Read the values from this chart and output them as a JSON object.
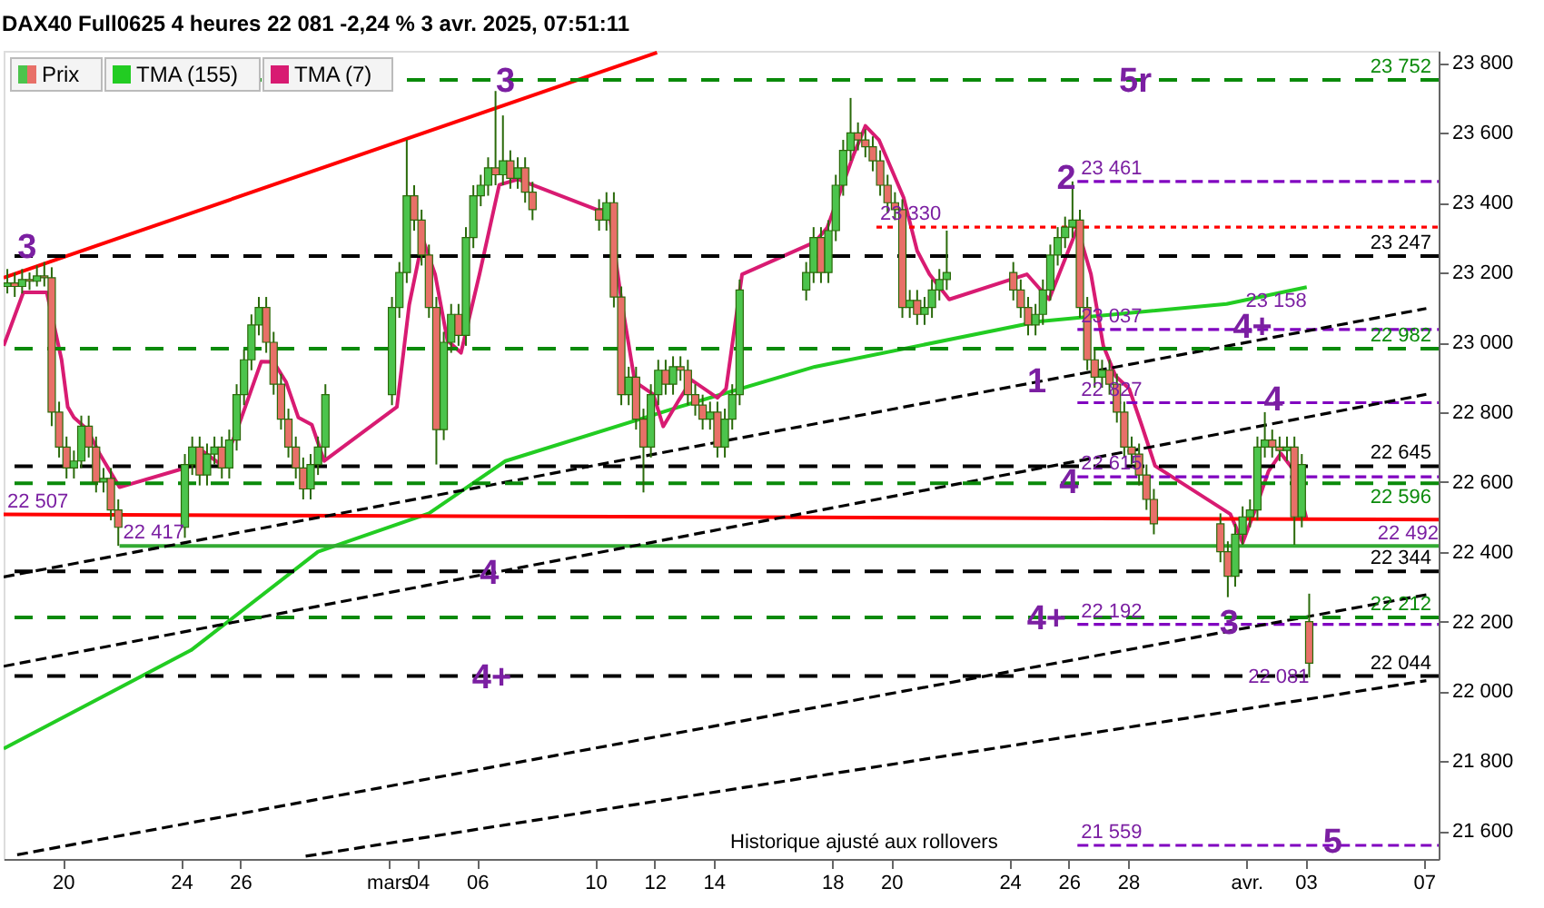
{
  "chart_data": {
    "type": "candlestick",
    "title": "DAX40 Full0625 4 heures 22 081 -2,24 % 3 avr. 2025, 07:51:11",
    "xlim": [
      "2025-02-18T00:00",
      "2025-04-07T12:00"
    ],
    "ylim": [
      21520,
      23835
    ],
    "xticks": [
      {
        "value": "2025-02-20",
        "label": "20"
      },
      {
        "value": "2025-02-24",
        "label": "24"
      },
      {
        "value": "2025-02-26",
        "label": "26"
      },
      {
        "value": "2025-03-03",
        "label": "mars"
      },
      {
        "value": "2025-03-04",
        "label": "04"
      },
      {
        "value": "2025-03-06",
        "label": "06"
      },
      {
        "value": "2025-03-10",
        "label": "10"
      },
      {
        "value": "2025-03-12",
        "label": "12"
      },
      {
        "value": "2025-03-14",
        "label": "14"
      },
      {
        "value": "2025-03-18",
        "label": "18"
      },
      {
        "value": "2025-03-20",
        "label": "20"
      },
      {
        "value": "2025-03-24",
        "label": "24"
      },
      {
        "value": "2025-03-26",
        "label": "26"
      },
      {
        "value": "2025-03-28",
        "label": "28"
      },
      {
        "value": "2025-04-01",
        "label": "avr."
      },
      {
        "value": "2025-04-03",
        "label": "03"
      },
      {
        "value": "2025-04-07",
        "label": "07"
      }
    ],
    "yticks": [
      {
        "value": 21600,
        "label": "21 600"
      },
      {
        "value": 21800,
        "label": "21 800"
      },
      {
        "value": 22000,
        "label": "22 000"
      },
      {
        "value": 22200,
        "label": "22 200"
      },
      {
        "value": 22400,
        "label": "22 400"
      },
      {
        "value": 22600,
        "label": "22 600"
      },
      {
        "value": 22800,
        "label": "22 800"
      },
      {
        "value": 23000,
        "label": "23 000"
      },
      {
        "value": 23200,
        "label": "23 200"
      },
      {
        "value": 23400,
        "label": "23 400"
      },
      {
        "value": 23600,
        "label": "23 600"
      },
      {
        "value": 23800,
        "label": "23 800"
      }
    ],
    "grid": false,
    "legend": "top left",
    "series": [
      {
        "name": "Prix",
        "color": "#2a6a0a",
        "x": [
          "2025-02-18T03:00",
          "2025-02-18T09:00",
          "2025-02-18T15:00",
          "2025-02-18T21:00",
          "2025-02-19T03:00",
          "2025-02-19T09:00",
          "2025-02-19T15:00",
          "2025-02-19T21:00",
          "2025-02-20T03:00",
          "2025-02-20T09:00",
          "2025-02-20T15:00",
          "2025-02-20T21:00",
          "2025-02-21T03:00",
          "2025-02-21T09:00",
          "2025-02-21T15:00",
          "2025-02-21T21:00",
          "2025-02-24T03:00",
          "2025-02-24T09:00",
          "2025-02-24T15:00",
          "2025-02-24T21:00",
          "2025-02-25T03:00",
          "2025-02-25T09:00",
          "2025-02-25T15:00",
          "2025-02-25T21:00",
          "2025-02-26T03:00",
          "2025-02-26T09:00",
          "2025-02-26T15:00",
          "2025-02-26T21:00",
          "2025-02-27T03:00",
          "2025-02-27T09:00",
          "2025-02-27T15:00",
          "2025-02-27T21:00",
          "2025-02-28T03:00",
          "2025-02-28T09:00",
          "2025-02-28T15:00",
          "2025-02-28T21:00",
          "2025-03-03T03:00",
          "2025-03-03T09:00",
          "2025-03-03T15:00",
          "2025-03-03T21:00",
          "2025-03-04T03:00",
          "2025-03-04T09:00",
          "2025-03-04T15:00",
          "2025-03-04T21:00",
          "2025-03-05T03:00",
          "2025-03-05T09:00",
          "2025-03-05T15:00",
          "2025-03-05T21:00",
          "2025-03-06T03:00",
          "2025-03-06T09:00",
          "2025-03-06T15:00",
          "2025-03-06T21:00",
          "2025-03-07T03:00",
          "2025-03-07T09:00",
          "2025-03-07T15:00",
          "2025-03-07T21:00",
          "2025-03-10T03:00",
          "2025-03-10T09:00",
          "2025-03-10T15:00",
          "2025-03-10T21:00",
          "2025-03-11T03:00",
          "2025-03-11T09:00",
          "2025-03-11T15:00",
          "2025-03-11T21:00",
          "2025-03-12T03:00",
          "2025-03-12T09:00",
          "2025-03-12T15:00",
          "2025-03-12T21:00",
          "2025-03-13T03:00",
          "2025-03-13T09:00",
          "2025-03-13T15:00",
          "2025-03-13T21:00",
          "2025-03-14T03:00",
          "2025-03-14T09:00",
          "2025-03-14T15:00",
          "2025-03-14T21:00",
          "2025-03-17T03:00",
          "2025-03-17T09:00",
          "2025-03-17T15:00",
          "2025-03-17T21:00",
          "2025-03-18T03:00",
          "2025-03-18T09:00",
          "2025-03-18T15:00",
          "2025-03-18T21:00",
          "2025-03-19T03:00",
          "2025-03-19T09:00",
          "2025-03-19T15:00",
          "2025-03-19T21:00",
          "2025-03-20T03:00",
          "2025-03-20T09:00",
          "2025-03-20T15:00",
          "2025-03-20T21:00",
          "2025-03-21T03:00",
          "2025-03-21T09:00",
          "2025-03-21T15:00",
          "2025-03-21T21:00",
          "2025-03-24T03:00",
          "2025-03-24T09:00",
          "2025-03-24T15:00",
          "2025-03-24T21:00",
          "2025-03-25T03:00",
          "2025-03-25T09:00",
          "2025-03-25T15:00",
          "2025-03-25T21:00",
          "2025-03-26T03:00",
          "2025-03-26T09:00",
          "2025-03-26T15:00",
          "2025-03-26T21:00",
          "2025-03-27T03:00",
          "2025-03-27T09:00",
          "2025-03-27T15:00",
          "2025-03-27T21:00",
          "2025-03-28T03:00",
          "2025-03-28T09:00",
          "2025-03-28T15:00",
          "2025-03-28T21:00",
          "2025-03-31T03:00",
          "2025-03-31T09:00",
          "2025-03-31T15:00",
          "2025-03-31T21:00",
          "2025-04-01T03:00",
          "2025-04-01T09:00",
          "2025-04-01T15:00",
          "2025-04-01T21:00",
          "2025-04-02T03:00",
          "2025-04-02T09:00",
          "2025-04-02T15:00",
          "2025-04-02T21:00",
          "2025-04-03T03:00"
        ],
        "ohlc": [
          [
            23160,
            23210,
            23140,
            23170
          ],
          [
            23170,
            23200,
            23130,
            23160
          ],
          [
            23160,
            23210,
            23140,
            23180
          ],
          [
            23180,
            23200,
            23150,
            23175
          ],
          [
            23175,
            23220,
            23160,
            23190
          ],
          [
            23190,
            23230,
            23160,
            23185
          ],
          [
            23185,
            23215,
            22760,
            22800
          ],
          [
            22800,
            22830,
            22670,
            22700
          ],
          [
            22700,
            22730,
            22610,
            22640
          ],
          [
            22640,
            22690,
            22610,
            22660
          ],
          [
            22660,
            22790,
            22640,
            22760
          ],
          [
            22760,
            22790,
            22670,
            22700
          ],
          [
            22700,
            22730,
            22570,
            22600
          ],
          [
            22600,
            22640,
            22570,
            22610
          ],
          [
            22610,
            22640,
            22490,
            22520
          ],
          [
            22520,
            22550,
            22417,
            22470
          ],
          [
            22470,
            22680,
            22440,
            22650
          ],
          [
            22650,
            22730,
            22620,
            22700
          ],
          [
            22700,
            22730,
            22590,
            22620
          ],
          [
            22620,
            22710,
            22590,
            22680
          ],
          [
            22680,
            22730,
            22650,
            22700
          ],
          [
            22700,
            22730,
            22610,
            22640
          ],
          [
            22640,
            22750,
            22610,
            22720
          ],
          [
            22720,
            22880,
            22690,
            22850
          ],
          [
            22850,
            22980,
            22820,
            22950
          ],
          [
            22950,
            23080,
            22920,
            23050
          ],
          [
            23050,
            23130,
            23020,
            23100
          ],
          [
            23100,
            23130,
            22970,
            23000
          ],
          [
            23000,
            23030,
            22850,
            22880
          ],
          [
            22880,
            22910,
            22750,
            22780
          ],
          [
            22780,
            22810,
            22670,
            22700
          ],
          [
            22700,
            22730,
            22610,
            22640
          ],
          [
            22640,
            22670,
            22550,
            22580
          ],
          [
            22580,
            22680,
            22550,
            22650
          ],
          [
            22650,
            22730,
            22620,
            22700
          ],
          [
            22700,
            22880,
            22670,
            22850
          ],
          [
            22850,
            23130,
            22820,
            23100
          ],
          [
            23100,
            23230,
            23070,
            23200
          ],
          [
            23200,
            23580,
            23170,
            23420
          ],
          [
            23420,
            23450,
            23320,
            23350
          ],
          [
            23350,
            23380,
            23220,
            23250
          ],
          [
            23250,
            23280,
            23070,
            23100
          ],
          [
            23100,
            23130,
            22650,
            22750
          ],
          [
            22750,
            23030,
            22720,
            23000
          ],
          [
            23000,
            23110,
            22970,
            23080
          ],
          [
            23080,
            23110,
            22990,
            23020
          ],
          [
            23020,
            23330,
            22990,
            23300
          ],
          [
            23300,
            23450,
            23270,
            23420
          ],
          [
            23420,
            23480,
            23390,
            23450
          ],
          [
            23450,
            23530,
            23420,
            23500
          ],
          [
            23500,
            23720,
            23450,
            23480
          ],
          [
            23480,
            23650,
            23450,
            23520
          ],
          [
            23520,
            23550,
            23440,
            23470
          ],
          [
            23470,
            23530,
            23440,
            23500
          ],
          [
            23500,
            23530,
            23400,
            23430
          ],
          [
            23430,
            23460,
            23350,
            23380
          ],
          [
            23380,
            23410,
            23320,
            23350
          ],
          [
            23350,
            23430,
            23320,
            23400
          ],
          [
            23400,
            23430,
            23100,
            23130
          ],
          [
            23130,
            23160,
            22820,
            22850
          ],
          [
            22850,
            22930,
            22820,
            22900
          ],
          [
            22900,
            22930,
            22750,
            22780
          ],
          [
            22780,
            22810,
            22570,
            22700
          ],
          [
            22700,
            22880,
            22670,
            22850
          ],
          [
            22850,
            22950,
            22820,
            22920
          ],
          [
            22920,
            22950,
            22850,
            22880
          ],
          [
            22880,
            22960,
            22850,
            22930
          ],
          [
            22930,
            22960,
            22890,
            22920
          ],
          [
            22920,
            22950,
            22820,
            22850
          ],
          [
            22850,
            22880,
            22790,
            22820
          ],
          [
            22820,
            22850,
            22750,
            22780
          ],
          [
            22780,
            22830,
            22750,
            22800
          ],
          [
            22800,
            22830,
            22670,
            22700
          ],
          [
            22700,
            22810,
            22670,
            22780
          ],
          [
            22780,
            22880,
            22750,
            22850
          ],
          [
            22850,
            23180,
            22820,
            23150
          ],
          [
            23150,
            23230,
            23120,
            23200
          ],
          [
            23200,
            23330,
            23170,
            23300
          ],
          [
            23300,
            23330,
            23170,
            23200
          ],
          [
            23200,
            23350,
            23170,
            23320
          ],
          [
            23320,
            23480,
            23290,
            23450
          ],
          [
            23450,
            23580,
            23420,
            23550
          ],
          [
            23550,
            23700,
            23520,
            23600
          ],
          [
            23600,
            23630,
            23550,
            23580
          ],
          [
            23580,
            23610,
            23530,
            23560
          ],
          [
            23560,
            23590,
            23490,
            23520
          ],
          [
            23520,
            23550,
            23420,
            23450
          ],
          [
            23450,
            23480,
            23370,
            23400
          ],
          [
            23400,
            23430,
            23350,
            23380
          ],
          [
            23380,
            23410,
            23070,
            23100
          ],
          [
            23100,
            23150,
            23070,
            23120
          ],
          [
            23120,
            23150,
            23050,
            23080
          ],
          [
            23080,
            23130,
            23050,
            23100
          ],
          [
            23100,
            23180,
            23070,
            23150
          ],
          [
            23150,
            23210,
            23120,
            23180
          ],
          [
            23180,
            23320,
            23150,
            23200
          ],
          [
            23200,
            23230,
            23120,
            23150
          ],
          [
            23150,
            23180,
            23070,
            23100
          ],
          [
            23100,
            23130,
            23020,
            23050
          ],
          [
            23050,
            23110,
            23020,
            23080
          ],
          [
            23080,
            23180,
            23050,
            23150
          ],
          [
            23150,
            23280,
            23120,
            23250
          ],
          [
            23250,
            23330,
            23220,
            23300
          ],
          [
            23300,
            23360,
            23270,
            23330
          ],
          [
            23330,
            23461,
            23300,
            23350
          ],
          [
            23350,
            23380,
            23070,
            23100
          ],
          [
            23100,
            23130,
            22920,
            22950
          ],
          [
            22950,
            22980,
            22870,
            22900
          ],
          [
            22900,
            22950,
            22870,
            22920
          ],
          [
            22920,
            22950,
            22850,
            22880
          ],
          [
            22880,
            22910,
            22770,
            22800
          ],
          [
            22800,
            22830,
            22670,
            22700
          ],
          [
            22700,
            22730,
            22650,
            22680
          ],
          [
            22680,
            22710,
            22590,
            22620
          ],
          [
            22620,
            22650,
            22520,
            22550
          ],
          [
            22550,
            22580,
            22450,
            22480
          ],
          [
            22480,
            22510,
            22370,
            22400
          ],
          [
            22400,
            22430,
            22270,
            22330
          ],
          [
            22330,
            22480,
            22300,
            22450
          ],
          [
            22450,
            22530,
            22420,
            22500
          ],
          [
            22500,
            22550,
            22470,
            22520
          ],
          [
            22520,
            22730,
            22490,
            22700
          ],
          [
            22700,
            22800,
            22670,
            22720
          ],
          [
            22720,
            22750,
            22670,
            22700
          ],
          [
            22700,
            22730,
            22660,
            22690
          ],
          [
            22690,
            22730,
            22660,
            22700
          ],
          [
            22700,
            22730,
            22420,
            22500
          ],
          [
            22500,
            22680,
            22470,
            22650
          ],
          [
            22200,
            22280,
            22040,
            22081
          ]
        ],
        "colors": [
          "#4cc44c",
          "#e87068",
          "#4cc44c",
          "#e87068",
          "#4cc44c",
          "#e87068",
          "#e87068",
          "#e87068",
          "#e87068",
          "#4cc44c",
          "#4cc44c",
          "#e87068",
          "#e87068",
          "#4cc44c",
          "#e87068",
          "#e87068",
          "#4cc44c",
          "#4cc44c",
          "#e87068",
          "#4cc44c",
          "#4cc44c",
          "#e87068",
          "#4cc44c",
          "#4cc44c",
          "#4cc44c",
          "#4cc44c",
          "#4cc44c",
          "#e87068",
          "#e87068",
          "#e87068",
          "#e87068",
          "#e87068",
          "#e87068",
          "#4cc44c",
          "#4cc44c",
          "#4cc44c",
          "#4cc44c",
          "#4cc44c",
          "#4cc44c",
          "#e87068",
          "#e87068",
          "#e87068",
          "#e87068",
          "#4cc44c",
          "#4cc44c",
          "#e87068",
          "#4cc44c",
          "#4cc44c",
          "#4cc44c",
          "#4cc44c",
          "#e87068",
          "#4cc44c",
          "#e87068",
          "#4cc44c",
          "#e87068",
          "#e87068",
          "#e87068",
          "#4cc44c",
          "#e87068",
          "#e87068",
          "#4cc44c",
          "#e87068",
          "#e87068",
          "#4cc44c",
          "#4cc44c",
          "#e87068",
          "#4cc44c",
          "#e87068",
          "#e87068",
          "#e87068",
          "#e87068",
          "#4cc44c",
          "#e87068",
          "#4cc44c",
          "#4cc44c",
          "#4cc44c",
          "#4cc44c",
          "#4cc44c",
          "#e87068",
          "#4cc44c",
          "#4cc44c",
          "#4cc44c",
          "#4cc44c",
          "#e87068",
          "#e87068",
          "#e87068",
          "#e87068",
          "#e87068",
          "#e87068",
          "#e87068",
          "#4cc44c",
          "#e87068",
          "#4cc44c",
          "#4cc44c",
          "#4cc44c",
          "#4cc44c",
          "#e87068",
          "#e87068",
          "#e87068",
          "#4cc44c",
          "#4cc44c",
          "#4cc44c",
          "#4cc44c",
          "#4cc44c",
          "#4cc44c",
          "#e87068",
          "#e87068",
          "#e87068",
          "#4cc44c",
          "#e87068",
          "#e87068",
          "#e87068",
          "#e87068",
          "#e87068",
          "#e87068",
          "#e87068",
          "#e87068",
          "#e87068",
          "#4cc44c",
          "#4cc44c",
          "#4cc44c",
          "#4cc44c",
          "#4cc44c",
          "#e87068",
          "#e87068",
          "#4cc44c",
          "#e87068",
          "#4cc44c",
          "#e87068"
        ]
      },
      {
        "name": "TMA (155)",
        "type": "line",
        "color": "#22cc22",
        "x": [
          "2025-02-18T00:00",
          "2025-02-24T08:00",
          "2025-02-28T15:00",
          "2025-03-04T09:00",
          "2025-03-06T23:00",
          "2025-03-12T20:00",
          "2025-03-17T10:00",
          "2025-03-25T00:00",
          "2025-03-31T08:00",
          "2025-04-03T01:00"
        ],
        "values": [
          21836,
          22118,
          22400,
          22510,
          22660,
          22815,
          22930,
          23060,
          23110,
          23158
        ]
      },
      {
        "name": "TMA (7)",
        "type": "line",
        "color": "#d81b72",
        "x": [
          "2025-02-18T00:00",
          "2025-02-18T16:00",
          "2025-02-19T11:00",
          "2025-02-19T23:00",
          "2025-02-20T04:00",
          "2025-02-20T09:00",
          "2025-02-20T20:00",
          "2025-02-21T06:00",
          "2025-02-21T22:00",
          "2025-02-24T08:00",
          "2025-02-24T18:00",
          "2025-02-25T10:00",
          "2025-02-26T01:00",
          "2025-02-26T17:00",
          "2025-02-27T03:00",
          "2025-02-27T13:00",
          "2025-02-27T23:00",
          "2025-02-28T10:00",
          "2025-02-28T20:00",
          "2025-03-03T07:00",
          "2025-03-03T17:00",
          "2025-03-04T04:00",
          "2025-03-04T14:00",
          "2025-03-05T00:00",
          "2025-03-05T11:00",
          "2025-03-06T02:00",
          "2025-03-06T18:00",
          "2025-03-07T09:00",
          "2025-03-10T01:00",
          "2025-03-10T11:00",
          "2025-03-10T21:00",
          "2025-03-11T08:00",
          "2025-03-11T23:00",
          "2025-03-12T07:00",
          "2025-03-12T20:00",
          "2025-03-13T06:00",
          "2025-03-14T03:00",
          "2025-03-14T10:00",
          "2025-03-14T23:00",
          "2025-03-17T10:00",
          "2025-03-17T20:00",
          "2025-03-18T17:00",
          "2025-03-19T03:00",
          "2025-03-19T14:00",
          "2025-03-20T10:00",
          "2025-03-20T21:00",
          "2025-03-21T07:00",
          "2025-03-21T23:00",
          "2025-03-24T14:00",
          "2025-03-25T08:00",
          "2025-03-26T07:00",
          "2025-03-26T18:00",
          "2025-03-27T04:00",
          "2025-03-27T14:00",
          "2025-03-28T01:00",
          "2025-03-28T11:00",
          "2025-03-28T22:00",
          "2025-03-31T11:00",
          "2025-03-31T21:00",
          "2025-04-01T08:00",
          "2025-04-01T18:00",
          "2025-04-02T04:00",
          "2025-04-02T15:00",
          "2025-04-03T01:00"
        ],
        "values": [
          22990,
          23143,
          23143,
          22950,
          22815,
          22785,
          22750,
          22680,
          22585,
          22645,
          22687,
          22645,
          22785,
          22945,
          22944,
          22887,
          22785,
          22764,
          22660,
          22815,
          23108,
          23297,
          23195,
          23005,
          22970,
          23195,
          23451,
          23467,
          23380,
          23380,
          23123,
          22887,
          22851,
          22759,
          22836,
          22892,
          22841,
          22867,
          23195,
          23287,
          23328,
          23533,
          23620,
          23580,
          23415,
          23262,
          23195,
          23123,
          23195,
          23123,
          23328,
          23195,
          22990,
          22903,
          22867,
          22764,
          22646,
          22508,
          22426,
          22528,
          22631,
          22682,
          22631,
          22492
        ]
      },
      {
        "type": "line",
        "color": "#ff0000",
        "x": [
          "2025-02-18T00:00",
          "2025-03-12T02:00"
        ],
        "values": [
          23185,
          23830
        ]
      },
      {
        "type": "line",
        "color": "#ff0000",
        "x": [
          "2025-02-18T00:00",
          "2025-04-07T12:00"
        ],
        "values": [
          22507,
          22492
        ]
      },
      {
        "type": "line",
        "color": "#33aa33",
        "x": [
          "2025-02-21T22:00",
          "2025-04-07T12:00"
        ],
        "values": [
          22417,
          22417
        ]
      },
      {
        "type": "line",
        "color": "#ff0000",
        "line_style": "dotted",
        "x": [
          "2025-03-19T12:00",
          "2025-04-07T12:00"
        ],
        "values": [
          23330,
          23330
        ]
      },
      {
        "type": "line",
        "color": "#8000c0",
        "line_style": "dashed",
        "x": [
          "2025-03-26T07:00",
          "2025-04-07T12:00"
        ],
        "values": [
          23461,
          23461
        ]
      },
      {
        "type": "line",
        "color": "#8000c0",
        "line_style": "dashed",
        "x": [
          "2025-03-26T07:00",
          "2025-04-07T12:00"
        ],
        "values": [
          23037,
          23037
        ]
      },
      {
        "type": "line",
        "color": "#8000c0",
        "line_style": "dashed",
        "x": [
          "2025-03-26T07:00",
          "2025-04-07T12:00"
        ],
        "values": [
          22827,
          22827
        ]
      },
      {
        "type": "line",
        "color": "#8000c0",
        "line_style": "dashed",
        "x": [
          "2025-03-26T07:00",
          "2025-04-07T12:00"
        ],
        "values": [
          22615,
          22615
        ]
      },
      {
        "type": "line",
        "color": "#8000c0",
        "line_style": "dashed",
        "x": [
          "2025-03-26T07:00",
          "2025-04-07T12:00"
        ],
        "values": [
          22192,
          22192
        ]
      },
      {
        "type": "line",
        "color": "#8000c0",
        "line_style": "dashed",
        "x": [
          "2025-03-26T07:00",
          "2025-04-07T12:00"
        ],
        "values": [
          21559,
          21559
        ]
      },
      {
        "type": "line",
        "color": "#000000",
        "line_style": "dashed",
        "x": [
          "2025-02-18T00:00",
          "2025-04-07T02:00"
        ],
        "values": [
          22328,
          23097
        ]
      },
      {
        "type": "line",
        "color": "#000000",
        "line_style": "dashed",
        "x": [
          "2025-02-18T00:00",
          "2025-04-07T02:00"
        ],
        "values": [
          22072,
          22851
        ]
      },
      {
        "type": "line",
        "color": "#000000",
        "line_style": "dashed",
        "x": [
          "2025-02-18T11:00",
          "2025-04-07T02:00"
        ],
        "values": [
          21532,
          22277
        ]
      },
      {
        "type": "line",
        "color": "#000000",
        "line_style": "dashed",
        "x": [
          "2025-02-28T05:00",
          "2025-04-07T02:00"
        ],
        "values": [
          21528,
          22031
        ]
      }
    ],
    "ref_lines": [
      {
        "axis": "y",
        "value": 23752,
        "label": "23 752",
        "color": "#0a8a0a",
        "line_style": "dashed"
      },
      {
        "axis": "y",
        "value": 23247,
        "label": "23 247",
        "color": "#000000",
        "line_style": "dashed"
      },
      {
        "axis": "y",
        "value": 22982,
        "label": "22 982",
        "color": "#0a8a0a",
        "line_style": "dashed"
      },
      {
        "axis": "y",
        "value": 22645,
        "label": "22 645",
        "color": "#000000",
        "line_style": "dashed"
      },
      {
        "axis": "y",
        "value": 22596,
        "label": "22 596",
        "color": "#0a8a0a",
        "line_style": "dashed"
      },
      {
        "axis": "y",
        "value": 22344,
        "label": "22 344",
        "color": "#000000",
        "line_style": "dashed"
      },
      {
        "axis": "y",
        "value": 22212,
        "label": "22 212",
        "color": "#0a8a0a",
        "line_style": "dashed"
      },
      {
        "axis": "y",
        "value": 22044,
        "label": "22 044",
        "color": "#000000",
        "line_style": "dashed"
      }
    ],
    "annotations": [
      {
        "text": "3",
        "x": "2025-02-18T19:00",
        "y": 23272
      },
      {
        "text": "3",
        "x": "2025-03-06T23:00",
        "y": 23750
      },
      {
        "text": "4",
        "x": "2025-03-06T10:00",
        "y": 22340
      },
      {
        "text": "4+",
        "x": "2025-03-06T12:00",
        "y": 22040
      },
      {
        "text": "5r",
        "x": "2025-03-28T06:00",
        "y": 23750
      },
      {
        "text": "2",
        "x": "2025-03-25T22:00",
        "y": 23470
      },
      {
        "text": "1",
        "x": "2025-03-24T22:00",
        "y": 22887
      },
      {
        "text": "4+",
        "x": "2025-04-01T05:00",
        "y": 23045
      },
      {
        "text": "4",
        "x": "2025-04-01T22:00",
        "y": 22835
      },
      {
        "text": "4",
        "x": "2025-03-26T00:00",
        "y": 22600
      },
      {
        "text": "4+",
        "x": "2025-03-25T06:00",
        "y": 22210
      },
      {
        "text": "3",
        "x": "2025-03-31T10:00",
        "y": 22195
      },
      {
        "text": "5",
        "x": "2025-04-03T22:00",
        "y": 21570
      },
      {
        "text": "23 461",
        "x": "2025-03-26T07:00",
        "y": 23461
      },
      {
        "text": "23 330",
        "x": "2025-03-19T12:00",
        "y": 23330
      },
      {
        "text": "23 037",
        "x": "2025-03-26T07:00",
        "y": 23037
      },
      {
        "text": "22 827",
        "x": "2025-03-26T07:00",
        "y": 22827
      },
      {
        "text": "22 615",
        "x": "2025-03-26T07:00",
        "y": 22615
      },
      {
        "text": "22 192",
        "x": "2025-03-26T07:00",
        "y": 22192
      },
      {
        "text": "21 559",
        "x": "2025-03-26T07:00",
        "y": 21559
      },
      {
        "text": "22 507",
        "x": "2025-02-18T00:00",
        "y": 22507
      },
      {
        "text": "22 417",
        "x": "2025-02-21T22:00",
        "y": 22417
      },
      {
        "text": "23 158",
        "x": "2025-04-03T01:00",
        "y": 23158
      },
      {
        "text": "22 492",
        "x": "2025-04-07T12:00",
        "y": 22492
      },
      {
        "text": "22 081",
        "x": "2025-04-03T03:00",
        "y": 22081
      },
      "Historique ajusté aux rollovers"
    ]
  }
}
